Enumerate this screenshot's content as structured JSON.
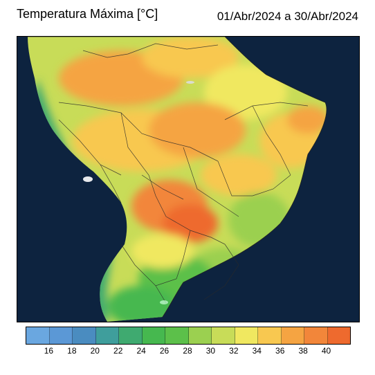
{
  "header": {
    "title": "Temperatura Máxima [°C]",
    "period": "01/Abr/2024 a 30/Abr/2024"
  },
  "map": {
    "region": "South America / Brazil",
    "ocean_color": "#0b1f3a",
    "land_night_color": "#1a2a38"
  },
  "colorbar": {
    "ticks": [
      "16",
      "18",
      "20",
      "22",
      "24",
      "26",
      "28",
      "30",
      "32",
      "34",
      "36",
      "38",
      "40"
    ],
    "colors": [
      "#6aa7e0",
      "#5b98d6",
      "#4a8cc0",
      "#3f9e9c",
      "#3faa70",
      "#46b84f",
      "#5cc04a",
      "#9bd050",
      "#c8dc58",
      "#f0e860",
      "#f8c850",
      "#f5a442",
      "#f2863a",
      "#ee6a2e"
    ]
  }
}
